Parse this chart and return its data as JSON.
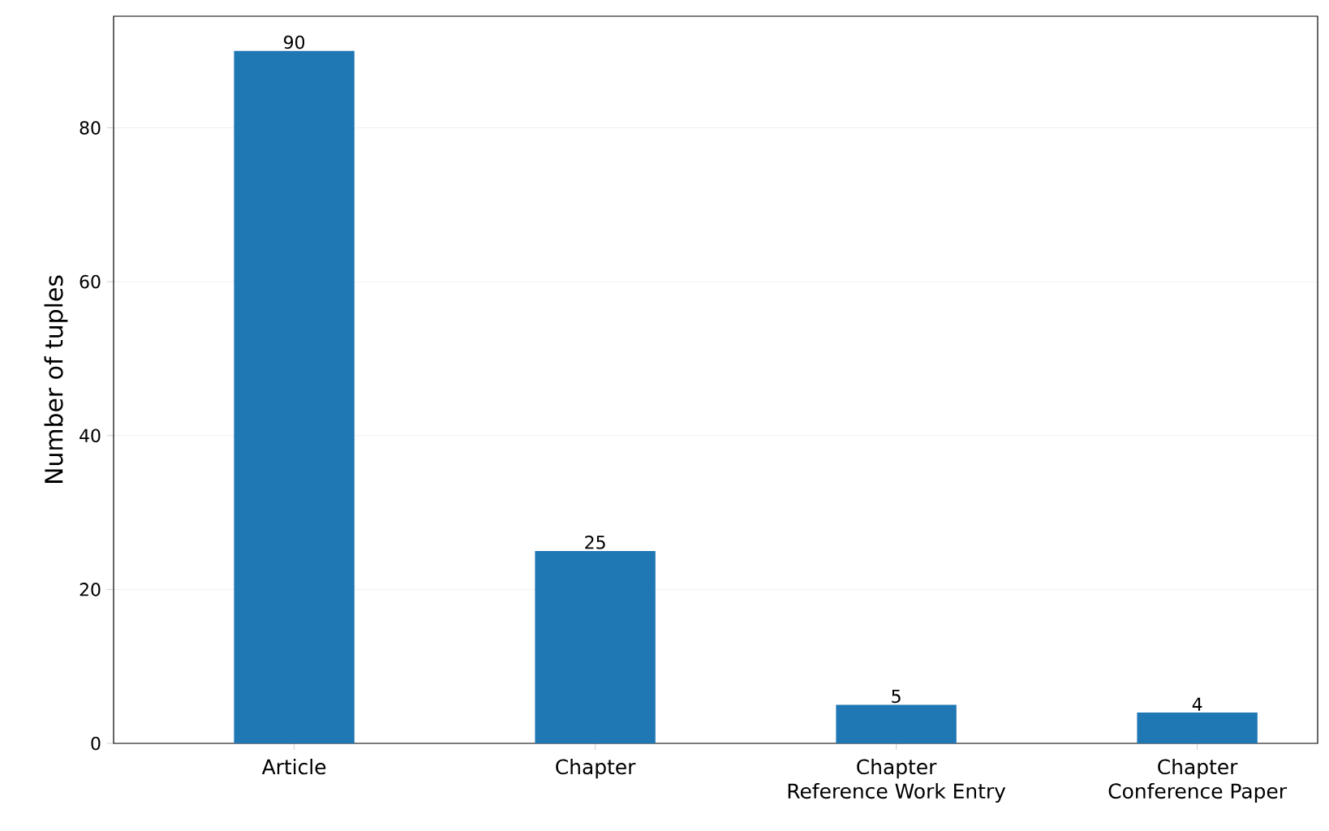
{
  "chart_data": {
    "type": "bar",
    "ylabel": "Number of tuples",
    "categories": [
      "Article",
      "Chapter",
      "Chapter\nReference Work Entry",
      "Chapter\nConference Paper"
    ],
    "values": [
      90,
      25,
      5,
      4
    ],
    "color": "#1f77b4",
    "data_labels": true,
    "ylim": [
      0,
      94.5
    ],
    "yticks": [
      0,
      20,
      40,
      60,
      80
    ],
    "grid": "y"
  }
}
